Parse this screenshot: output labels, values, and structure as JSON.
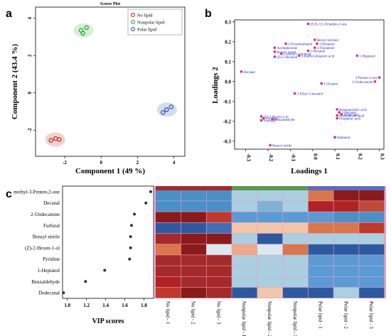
{
  "panel_labels": {
    "a": "a",
    "b": "b",
    "c": "c"
  },
  "chart_data": [
    {
      "type": "scatter",
      "title": "Scores Plot",
      "xlabel": "Component 1 (49 %)",
      "ylabel": "Component 2 (43.4 %)",
      "xlim": [
        -3.6,
        4.6
      ],
      "ylim": [
        -3.4,
        4.6
      ],
      "xticks": [
        -2,
        0,
        2,
        4
      ],
      "yticks": [
        -2,
        0,
        2,
        4
      ],
      "legend_position": "top-right",
      "series": [
        {
          "name": "No lipid",
          "color": "#c0392b",
          "points": [
            [
              -2.75,
              -2.55
            ],
            [
              -2.5,
              -2.45
            ],
            [
              -2.3,
              -2.5
            ]
          ]
        },
        {
          "name": "Nonpolar lipid",
          "color": "#3aa845",
          "points": [
            [
              -1.1,
              3.35
            ],
            [
              -0.8,
              3.5
            ],
            [
              -1.0,
              3.2
            ]
          ]
        },
        {
          "name": "Polar lipid",
          "color": "#3a5fb0",
          "points": [
            [
              3.4,
              -1.05
            ],
            [
              3.6,
              -0.9
            ],
            [
              3.85,
              -0.75
            ]
          ]
        }
      ]
    },
    {
      "type": "scatter",
      "title": "",
      "xlabel": "Loadings 1",
      "ylabel": "Loadings 2",
      "xlim": [
        -0.35,
        0.32
      ],
      "ylim": [
        -0.34,
        0.31
      ],
      "xticks": [
        -0.3,
        -0.2,
        -0.1,
        0,
        0.1,
        0.2,
        0.3
      ],
      "yticks": [
        -0.3,
        -0.2,
        -0.1,
        0,
        0.1,
        0.2,
        0.3
      ],
      "xtick_labels": [
        "-0.3",
        "-0.2",
        "-0.1",
        "0.0",
        "0.1",
        "0.2",
        "0.3"
      ],
      "ytick_labels": [
        "-0.3",
        "-0.2",
        "-0.1",
        "0.0",
        "0.1",
        "0.2",
        "0.3"
      ],
      "point_color": "#d6336c",
      "label_color": "#2a2ad0",
      "points": [
        {
          "label": "(E,E)-3,5-Octadien-2-one",
          "x": -0.02,
          "y": 0.29
        },
        {
          "label": "Benzyl alcohol",
          "x": 0.01,
          "y": 0.21
        },
        {
          "label": "2-Furanmethanol",
          "x": -0.12,
          "y": 0.19
        },
        {
          "label": "1-Pentanol",
          "x": 0.02,
          "y": 0.19
        },
        {
          "label": "2-Nonanone",
          "x": 0.01,
          "y": 0.17
        },
        {
          "label": "Acetophenone",
          "x": -0.17,
          "y": 0.17
        },
        {
          "label": "1-Hexanol",
          "x": -0.02,
          "y": 0.155
        },
        {
          "label": "Benzyl acetal",
          "x": -0.17,
          "y": 0.15
        },
        {
          "label": "2-methyl-2-butenal",
          "x": -0.14,
          "y": 0.14
        },
        {
          "label": "(E)-2-Hexenal",
          "x": -0.17,
          "y": 0.125
        },
        {
          "label": "3-methyl-butanoic acid",
          "x": -0.06,
          "y": 0.13
        },
        {
          "label": "1-Heptanol",
          "x": 0.2,
          "y": 0.13
        },
        {
          "label": "Decanal",
          "x": -0.32,
          "y": 0.05
        },
        {
          "label": "3-Penten-2-one",
          "x": 0.3,
          "y": 0.02
        },
        {
          "label": "2-Undecanone",
          "x": 0.28,
          "y": 0.0
        },
        {
          "label": "1-Octanol",
          "x": 0.04,
          "y": -0.01
        },
        {
          "label": "2-Ethyl-1-hexanol",
          "x": -0.08,
          "y": -0.06
        },
        {
          "label": "Benzeneacetic acid",
          "x": 0.11,
          "y": -0.14
        },
        {
          "label": "2-Decanal",
          "x": 0.12,
          "y": -0.155
        },
        {
          "label": "Phenylacetic acid",
          "x": 0.11,
          "y": -0.17
        },
        {
          "label": "Dodecanal",
          "x": 0.13,
          "y": -0.165
        },
        {
          "label": "Propanoic acid",
          "x": 0.11,
          "y": -0.185
        },
        {
          "label": "(Z)-2-Hexen-1-ol",
          "x": -0.23,
          "y": -0.175
        },
        {
          "label": "Pyridine",
          "x": -0.22,
          "y": -0.185
        },
        {
          "label": "Furfural",
          "x": -0.23,
          "y": -0.195
        },
        {
          "label": "Benzaldehyde",
          "x": -0.18,
          "y": -0.19
        },
        {
          "label": "Heptanal",
          "x": 0.1,
          "y": -0.28
        },
        {
          "label": "Benzyl nitrile",
          "x": -0.19,
          "y": -0.32
        }
      ]
    },
    {
      "type": "scatter",
      "title": "",
      "xlabel": "VIP scores",
      "ylabel": "",
      "xlim": [
        0.95,
        1.9
      ],
      "xticks": [
        1.0,
        1.2,
        1.4,
        1.6,
        1.8
      ],
      "xtick_labels": [
        "1.0",
        "1.2",
        "1.4",
        "1.6",
        "1.8"
      ],
      "categories": [
        "methyl-3-Penten-2-one",
        "Decanal",
        "2-Undecanone",
        "Furfural",
        "Benzyl nitrile",
        "(Z)-2-Hexen-1-ol",
        "Pyridine",
        "1-Heptanol",
        "Benzaldehyde",
        "Dodecanal"
      ],
      "values": [
        1.87,
        1.82,
        1.7,
        1.67,
        1.66,
        1.66,
        1.65,
        1.39,
        1.19,
        0.96
      ]
    },
    {
      "type": "heatmap",
      "columns": [
        "No lipid - 1",
        "No lipid - 2",
        "No lipid - 3",
        "Nonpolar lipid - 1",
        "Nonpolar lipid - 2",
        "Nonpolar lipid - 3",
        "Polar lipid - 1",
        "Polar lipid - 2",
        "Polar lipid - 3"
      ],
      "group_colors": [
        "#a52a2a",
        "#5a9a4a",
        "#5c6bc0"
      ],
      "rows": [
        "methyl-3-Penten-2-one",
        "Decanal",
        "2-Undecanone",
        "Furfural",
        "Benzyl nitrile",
        "(Z)-2-Hexen-1-ol",
        "Pyridine",
        "1-Heptanol",
        "Benzaldehyde",
        "Dodecanal"
      ],
      "cell_colors": [
        [
          "#4a90c8",
          "#4a90c8",
          "#4a90c8",
          "#a9cfe0",
          "#a9cfe0",
          "#a9cfe0",
          "#d9764a",
          "#8b1a1a",
          "#8b1a1a"
        ],
        [
          "#4a90c8",
          "#4a90c8",
          "#4a90c8",
          "#a9cfe0",
          "#7fb3d5",
          "#a9cfe0",
          "#b22222",
          "#b22222",
          "#c04a3a"
        ],
        [
          "#8b1a1a",
          "#8b1a1a",
          "#c0392b",
          "#5b9bd5",
          "#5b9bd5",
          "#5b9bd5",
          "#5b9bd5",
          "#4a90c8",
          "#4a90c8"
        ],
        [
          "#2c5aa0",
          "#2c5aa0",
          "#3f6fb5",
          "#f2c6a8",
          "#f2c6a8",
          "#f2c6a8",
          "#d9764a",
          "#d9764a",
          "#c0392b"
        ],
        [
          "#a52a2a",
          "#8b1a1a",
          "#8b1a1a",
          "#a9cfe0",
          "#2c5aa0",
          "#a9cfe0",
          "#a9cfe0",
          "#a9cfe0",
          "#a9cfe0"
        ],
        [
          "#d9764a",
          "#8b1a1a",
          "#dbe8f0",
          "#f0a88a",
          "#dbe8f0",
          "#d9764a",
          "#2c5aa0",
          "#2c5aa0",
          "#2c5aa0"
        ],
        [
          "#a52a2a",
          "#a52a2a",
          "#a52a2a",
          "#a9cfe0",
          "#a9cfe0",
          "#a9cfe0",
          "#5b9bd5",
          "#5b9bd5",
          "#5b9bd5"
        ],
        [
          "#a52a2a",
          "#a52a2a",
          "#a52a2a",
          "#a9cfe0",
          "#a9cfe0",
          "#a9cfe0",
          "#5b9bd5",
          "#5b9bd5",
          "#5b9bd5"
        ],
        [
          "#b22222",
          "#a52a2a",
          "#a52a2a",
          "#a9cfe0",
          "#a9cfe0",
          "#a9cfe0",
          "#5b9bd5",
          "#5b9bd5",
          "#5b9bd5"
        ],
        [
          "#c0392b",
          "#8b1a1a",
          "#a52a2a",
          "#2c5aa0",
          "#f2c6a8",
          "#2c5aa0",
          "#2c5aa0",
          "#a9cfe0",
          "#2c5aa0"
        ]
      ]
    }
  ]
}
